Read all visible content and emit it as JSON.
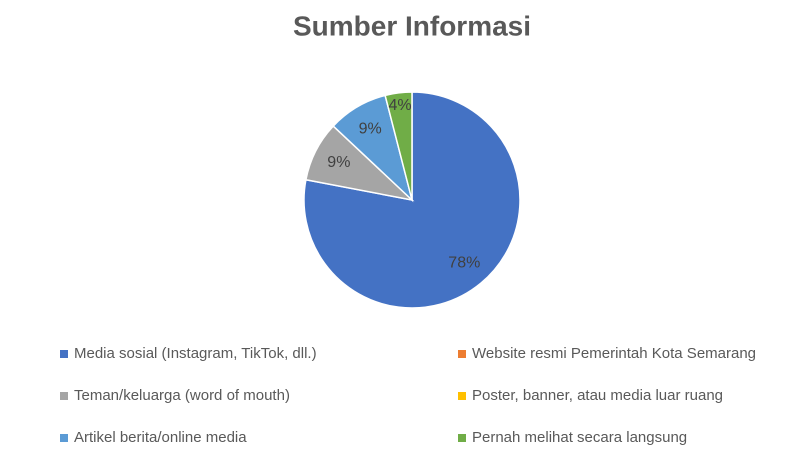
{
  "chart_data": {
    "type": "pie",
    "title": "Sumber Informasi",
    "categories": [
      "Media sosial (Instagram, TikTok, dll.)",
      "Website resmi Pemerintah Kota Semarang",
      "Teman/keluarga (word of mouth)",
      "Poster, banner, atau media luar ruang",
      "Artikel berita/online media",
      "Pernah melihat secara langsung"
    ],
    "values": [
      78,
      0,
      9,
      0,
      9,
      4
    ],
    "value_labels": [
      "78%",
      null,
      "9%",
      null,
      "9%",
      "4%"
    ],
    "colors": [
      "#4472c4",
      "#ed7d31",
      "#a5a5a5",
      "#ffc000",
      "#5b9bd5",
      "#70ad47"
    ],
    "legend": "bottom"
  }
}
